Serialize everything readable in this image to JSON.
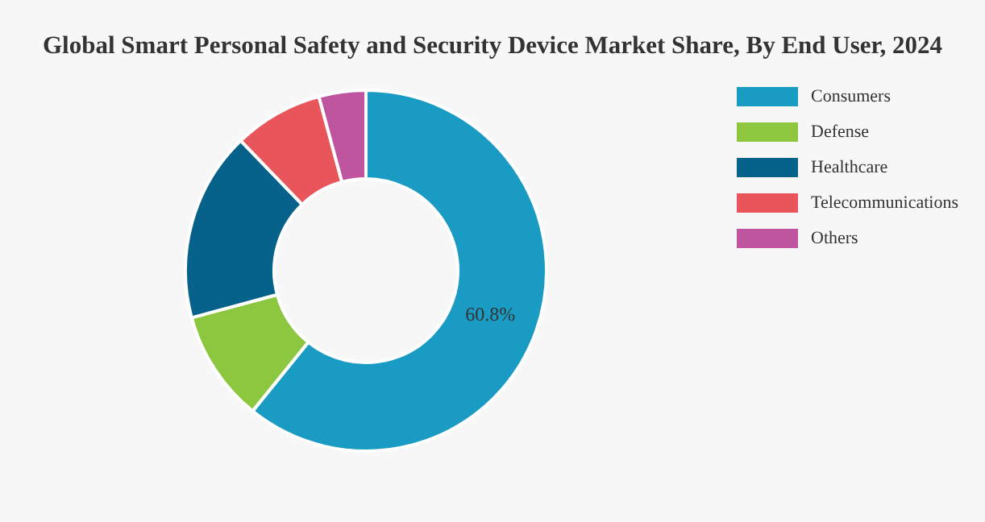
{
  "chart_data": {
    "type": "donut",
    "title": "Global Smart Personal Safety and Security Device Market Share, By End User, 2024",
    "categories": [
      "Consumers",
      "Defense",
      "Healthcare",
      "Telecommunications",
      "Others"
    ],
    "values": [
      60.8,
      10,
      17,
      8,
      4.2
    ],
    "colors": [
      "#1a9bc4",
      "#8dc63f",
      "#06628a",
      "#e8555a",
      "#c0559f"
    ],
    "value_labels": [
      "60.8%",
      null,
      null,
      null,
      null
    ],
    "legend": "top right"
  }
}
